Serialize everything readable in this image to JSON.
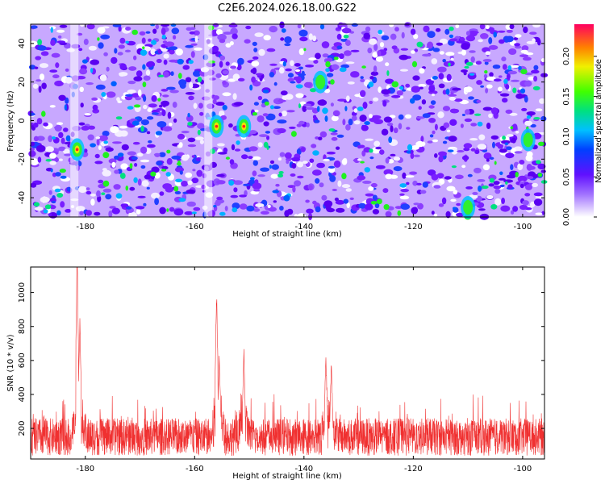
{
  "title": "C2E6.2024.026.18.00.G22",
  "chart_data": [
    {
      "type": "heatmap",
      "xlabel": "Height of straight line (km)",
      "ylabel": "Frequency (Hz)",
      "xlim": [
        -190,
        -96
      ],
      "ylim": [
        -50,
        50
      ],
      "xticks": [
        -180,
        -160,
        -140,
        -120,
        -100
      ],
      "yticks": [
        -40,
        -20,
        0,
        20,
        40
      ],
      "colorbar": {
        "label": "Normalized spectral amplitude",
        "range": [
          0,
          0.24
        ],
        "ticks": [
          "0.00",
          "0.05",
          "0.10",
          "0.15",
          "0.20"
        ]
      },
      "clusters": [
        {
          "x": -181.5,
          "y": -15,
          "peak": 0.24
        },
        {
          "x": -156,
          "y": -3,
          "peak": 0.2
        },
        {
          "x": -151,
          "y": -3,
          "peak": 0.23
        },
        {
          "x": -137,
          "y": 20,
          "peak": 0.12
        },
        {
          "x": -99,
          "y": -10,
          "peak": 0.13
        },
        {
          "x": -110,
          "y": -45,
          "peak": 0.11
        }
      ],
      "noise_level": 0.04,
      "color": "#7a1fff"
    },
    {
      "type": "line",
      "xlabel": "Height of straight line (km)",
      "ylabel": "SNR (10 * v/v)",
      "xlim": [
        -190,
        -96
      ],
      "ylim": [
        20,
        1150
      ],
      "xticks": [
        -180,
        -160,
        -140,
        -120,
        -100
      ],
      "yticks": [
        200,
        400,
        600,
        800,
        1000
      ],
      "color": "#f03030",
      "baseline": 150,
      "peaks": [
        {
          "x": -181.5,
          "y": 1150
        },
        {
          "x": -181,
          "y": 820
        },
        {
          "x": -156,
          "y": 940
        },
        {
          "x": -155.5,
          "y": 600
        },
        {
          "x": -151,
          "y": 640
        },
        {
          "x": -136,
          "y": 580
        },
        {
          "x": -135,
          "y": 560
        }
      ]
    }
  ]
}
